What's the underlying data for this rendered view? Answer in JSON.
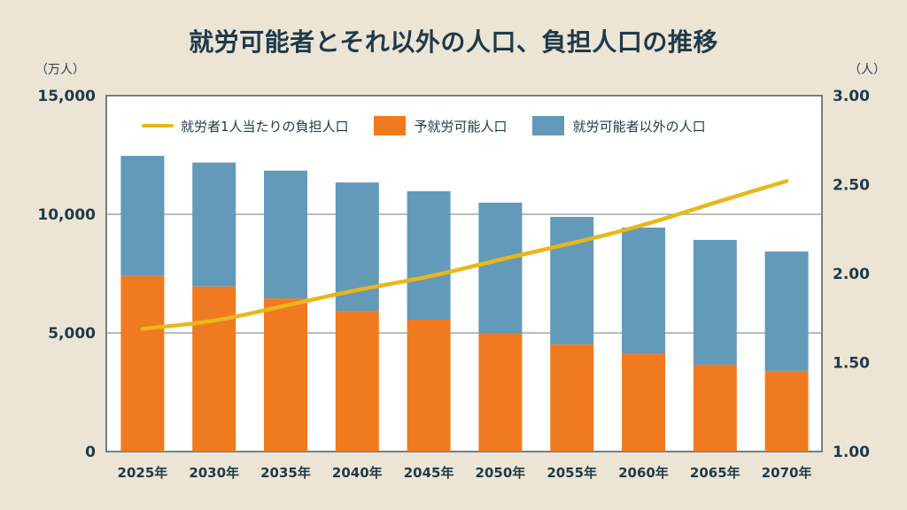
{
  "chart_data": {
    "type": "bar",
    "stacked": true,
    "title": "就労可能者とそれ以外の人口、負担人口の推移",
    "categories": [
      "2025年",
      "2030年",
      "2035年",
      "2040年",
      "2045年",
      "2050年",
      "2055年",
      "2060年",
      "2065年",
      "2070年"
    ],
    "series": [
      {
        "name": "予就労可能人口",
        "type": "bar",
        "axis": "left",
        "color": "#f07a1f",
        "values": [
          7400,
          6950,
          6450,
          5930,
          5560,
          5000,
          4510,
          4140,
          3660,
          3400
        ]
      },
      {
        "name": "就労可能者以外の人口",
        "type": "bar",
        "axis": "left",
        "color": "#6399b9",
        "values": [
          5060,
          5230,
          5390,
          5410,
          5410,
          5490,
          5380,
          5300,
          5260,
          5030
        ]
      },
      {
        "name": "就労者1人当たりの負担人口",
        "type": "line",
        "axis": "right",
        "color": "#e8b71c",
        "values": [
          1.69,
          1.73,
          1.82,
          1.91,
          1.98,
          2.08,
          2.17,
          2.27,
          2.4,
          2.52
        ]
      }
    ],
    "legend_order": [
      "就労者1人当たりの負担人口",
      "予就労可能人口",
      "就労可能者以外の人口"
    ],
    "legend_position": "top",
    "xlabel": "",
    "ylabel_left": "（万人）",
    "ylabel_right": "（人）",
    "ylim_left": [
      0,
      15000
    ],
    "ylim_right": [
      1.0,
      3.0
    ],
    "yticks_left": [
      "0",
      "5,000",
      "10,000",
      "15,000"
    ],
    "yticks_left_values": [
      0,
      5000,
      10000,
      15000
    ],
    "yticks_right": [
      "1.00",
      "1.50",
      "2.00",
      "2.50",
      "3.00"
    ],
    "yticks_right_values": [
      1.0,
      1.5,
      2.0,
      2.5,
      3.0
    ],
    "grid": "horizontal at left-axis ticks"
  },
  "colors": {
    "background": "#ece5d5",
    "text": "#1f3a4a",
    "plot_background": "#ffffff",
    "axis": "#4a5a64",
    "grid": "#8a969c"
  }
}
